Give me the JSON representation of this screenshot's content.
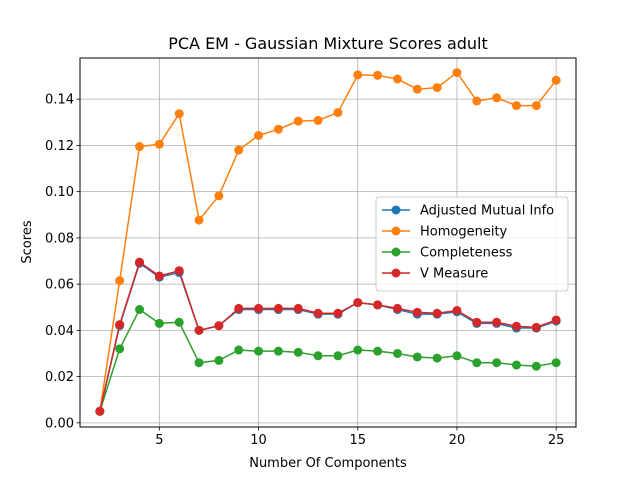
{
  "chart_data": {
    "type": "line",
    "title": "PCA EM - Gaussian Mixture Scores adult",
    "xlabel": "Number Of Components",
    "ylabel": "Scores",
    "xlim": [
      1.0,
      26.0
    ],
    "ylim": [
      -0.0018,
      0.1578
    ],
    "xticks": [
      5,
      10,
      15,
      20,
      25
    ],
    "xtick_labels": [
      "5",
      "10",
      "15",
      "20",
      "25"
    ],
    "yticks": [
      0.0,
      0.02,
      0.04,
      0.06,
      0.08,
      0.1,
      0.12,
      0.14
    ],
    "ytick_labels": [
      "0.00",
      "0.02",
      "0.04",
      "0.06",
      "0.08",
      "0.10",
      "0.12",
      "0.14"
    ],
    "grid": true,
    "legend_position": "center-right",
    "x": [
      2,
      3,
      4,
      5,
      6,
      7,
      8,
      9,
      10,
      11,
      12,
      13,
      14,
      15,
      16,
      17,
      18,
      19,
      20,
      21,
      22,
      23,
      24,
      25
    ],
    "series": [
      {
        "name": "Adjusted Mutual Info",
        "color": "#1f77b4",
        "values": [
          0.005,
          0.042,
          0.069,
          0.063,
          0.065,
          0.04,
          0.042,
          0.049,
          0.049,
          0.049,
          0.049,
          0.047,
          0.047,
          0.052,
          0.051,
          0.049,
          0.047,
          0.047,
          0.048,
          0.043,
          0.043,
          0.041,
          0.041,
          0.044
        ]
      },
      {
        "name": "Homogeneity",
        "color": "#ff7f0e",
        "values": [
          0.005,
          0.0615,
          0.1195,
          0.1205,
          0.1337,
          0.0877,
          0.0982,
          0.118,
          0.1243,
          0.127,
          0.1305,
          0.1308,
          0.1342,
          0.1505,
          0.1503,
          0.1487,
          0.1443,
          0.145,
          0.1515,
          0.1392,
          0.1406,
          0.1372,
          0.1372,
          0.1482
        ]
      },
      {
        "name": "Completeness",
        "color": "#2ca02c",
        "values": [
          0.005,
          0.032,
          0.049,
          0.043,
          0.0435,
          0.026,
          0.027,
          0.0315,
          0.031,
          0.031,
          0.0305,
          0.029,
          0.029,
          0.0315,
          0.031,
          0.03,
          0.0285,
          0.028,
          0.029,
          0.026,
          0.026,
          0.025,
          0.0245,
          0.026
        ]
      },
      {
        "name": "V Measure",
        "color": "#d62728",
        "values": [
          0.005,
          0.0425,
          0.0695,
          0.0635,
          0.0658,
          0.04,
          0.042,
          0.0495,
          0.0495,
          0.0495,
          0.0495,
          0.0474,
          0.0474,
          0.052,
          0.051,
          0.0495,
          0.0478,
          0.0474,
          0.0486,
          0.0435,
          0.0435,
          0.0418,
          0.0413,
          0.0445
        ]
      }
    ]
  }
}
